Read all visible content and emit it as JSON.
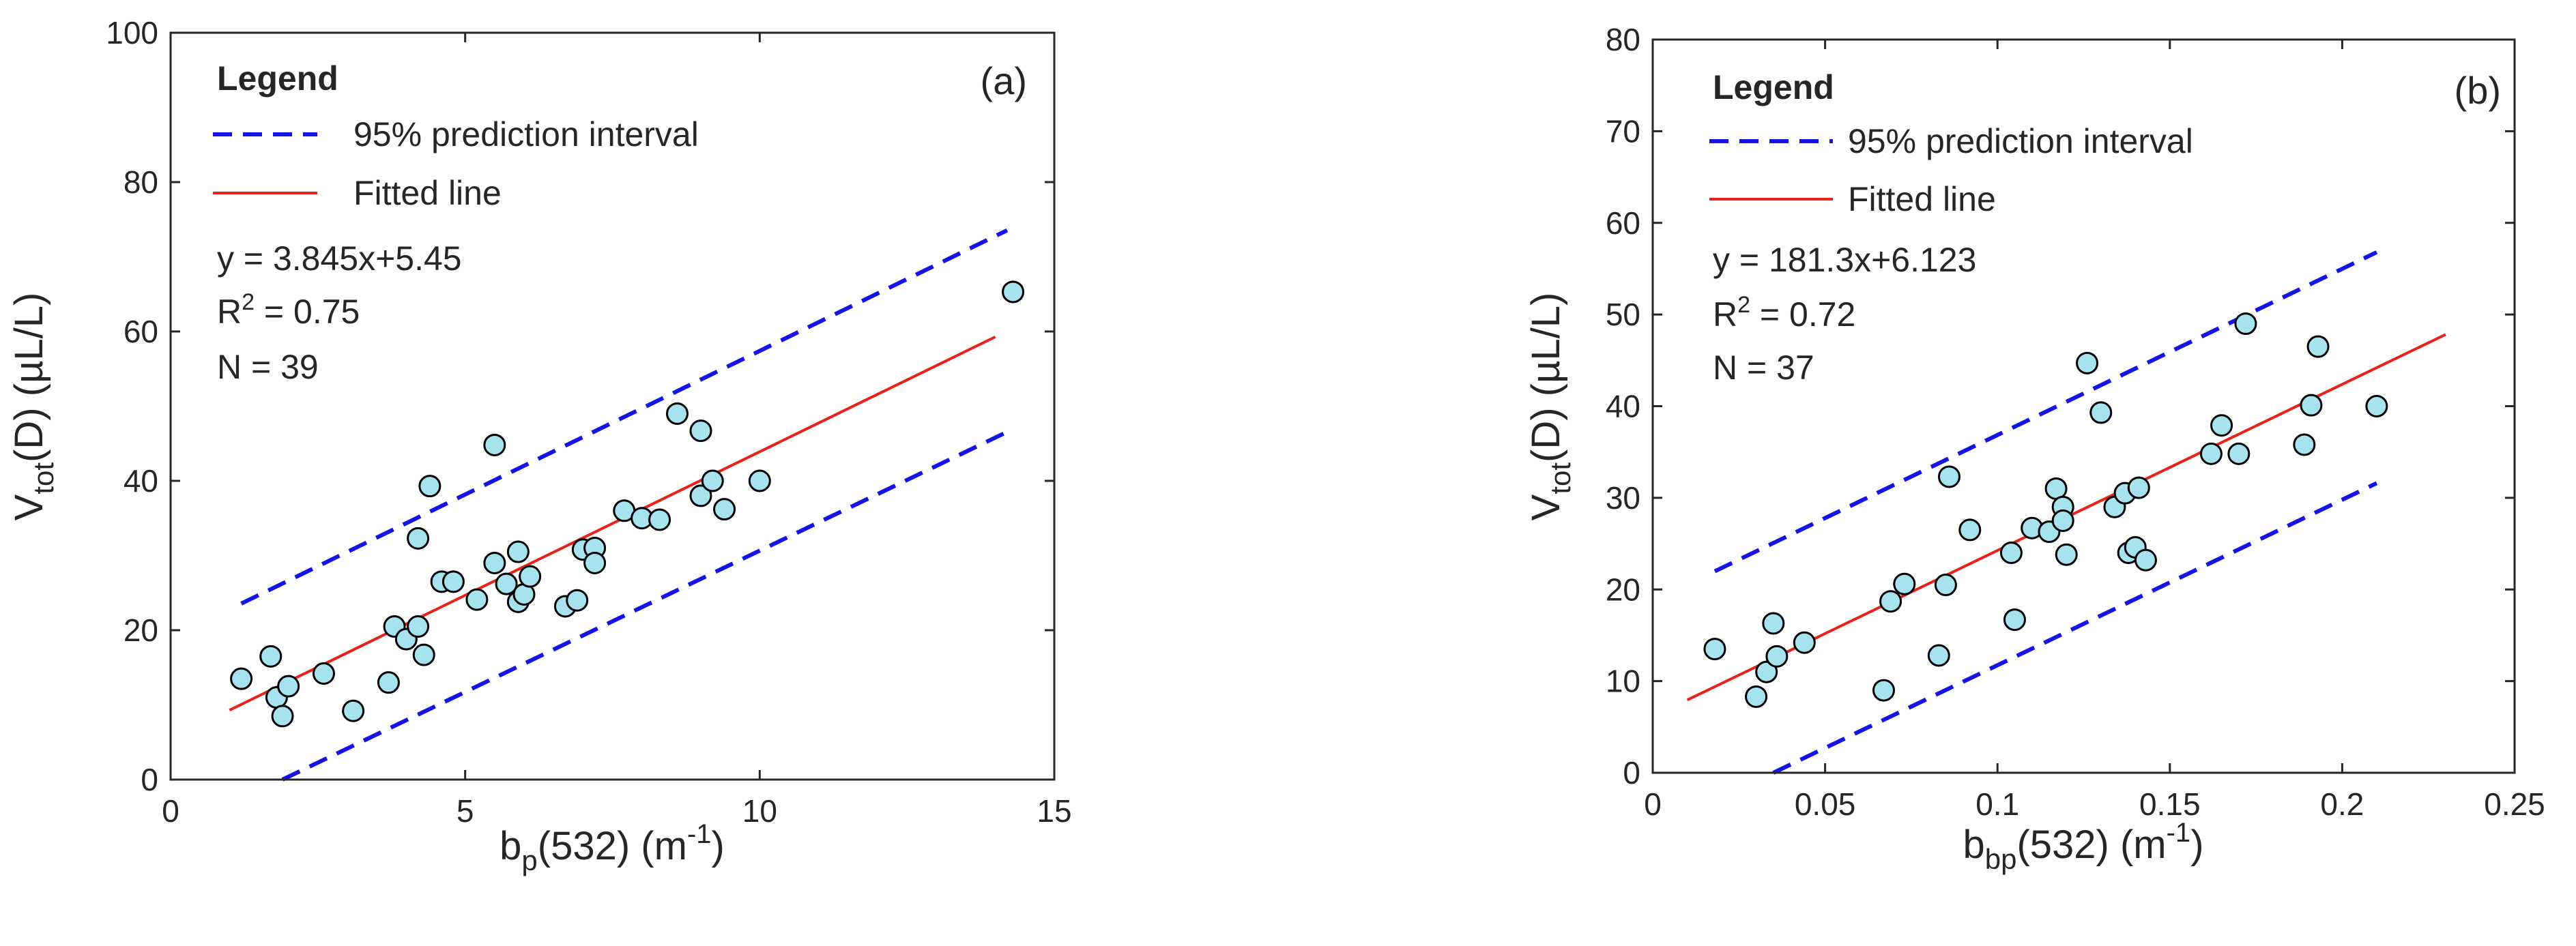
{
  "chart_data": [
    {
      "type": "scatter",
      "panel_label": "(a)",
      "xlim": [
        0,
        15
      ],
      "ylim": [
        0,
        100
      ],
      "xticks": [
        0,
        5,
        10,
        15
      ],
      "yticks": [
        0,
        20,
        40,
        60,
        80,
        100
      ],
      "xlabel": {
        "base": "b",
        "sub": "p",
        "tail": "(532) (m",
        "sup": "-1",
        "end": ")"
      },
      "ylabel": {
        "base": "V",
        "sub": "tot",
        "tail": "(D) (µL/L)"
      },
      "legend": {
        "title": "Legend",
        "interval_label": "95% prediction interval",
        "fit_label": "Fitted line",
        "equation": "y = 3.845x+5.45",
        "r2_prefix": "R",
        "r2_sup": "2",
        "r2_value": " = 0.75",
        "n_text": "N = 39"
      },
      "colors": {
        "interval": "#1414e6",
        "fit": "#e8211b",
        "marker_fill": "#a6e3ee",
        "marker_edge": "#000000"
      },
      "fit": {
        "slope": 3.845,
        "intercept": 5.45,
        "x_range": [
          1.0,
          14.0
        ]
      },
      "interval": {
        "half_width": 13.5,
        "upper_x_range": [
          1.2,
          14.2
        ],
        "lower_x_range": [
          1.9,
          14.2
        ]
      },
      "points": [
        [
          1.2,
          13.5
        ],
        [
          1.7,
          16.5
        ],
        [
          1.8,
          11
        ],
        [
          1.9,
          8.5
        ],
        [
          2.0,
          12.5
        ],
        [
          2.6,
          14.2
        ],
        [
          3.1,
          9.2
        ],
        [
          3.7,
          13
        ],
        [
          3.8,
          20.5
        ],
        [
          4.0,
          18.8
        ],
        [
          4.2,
          20.5
        ],
        [
          4.2,
          32.3
        ],
        [
          4.4,
          39.3
        ],
        [
          4.3,
          16.7
        ],
        [
          4.6,
          26.5
        ],
        [
          4.8,
          26.5
        ],
        [
          5.2,
          24.1
        ],
        [
          5.5,
          29
        ],
        [
          5.5,
          44.8
        ],
        [
          5.7,
          26.2
        ],
        [
          5.9,
          30.5
        ],
        [
          5.9,
          23.8
        ],
        [
          6.0,
          24.8
        ],
        [
          6.1,
          27.2
        ],
        [
          6.7,
          23.2
        ],
        [
          6.9,
          24
        ],
        [
          7.0,
          30.8
        ],
        [
          7.2,
          31
        ],
        [
          7.2,
          29
        ],
        [
          7.7,
          36
        ],
        [
          8.0,
          35
        ],
        [
          8.3,
          34.8
        ],
        [
          8.6,
          49
        ],
        [
          9.0,
          38
        ],
        [
          9.0,
          46.7
        ],
        [
          9.2,
          40
        ],
        [
          9.4,
          36.2
        ],
        [
          10.0,
          40
        ],
        [
          14.3,
          65.3
        ]
      ]
    },
    {
      "type": "scatter",
      "panel_label": "(b)",
      "xlim": [
        0,
        0.25
      ],
      "ylim": [
        0,
        80
      ],
      "xticks": [
        0,
        0.05,
        0.1,
        0.15,
        0.2,
        0.25
      ],
      "yticks": [
        0,
        10,
        20,
        30,
        40,
        50,
        60,
        70,
        80
      ],
      "xlabel": {
        "base": "b",
        "sub": "bp",
        "tail": "(532) (m",
        "sup": "-1",
        "end": ")"
      },
      "ylabel": {
        "base": "V",
        "sub": "tot",
        "tail": "(D) (µL/L)"
      },
      "legend": {
        "title": "Legend",
        "interval_label": "95% prediction interval",
        "fit_label": "Fitted line",
        "equation": "y = 181.3x+6.123",
        "r2_prefix": "R",
        "r2_sup": "2",
        "r2_value": " = 0.72",
        "n_text": "N = 37"
      },
      "colors": {
        "interval": "#1414e6",
        "fit": "#e8211b",
        "marker_fill": "#a6e3ee",
        "marker_edge": "#000000"
      },
      "fit": {
        "slope": 181.3,
        "intercept": 6.123,
        "x_range": [
          0.01,
          0.23
        ]
      },
      "interval": {
        "half_width": 12.6,
        "upper_x_range": [
          0.018,
          0.21
        ],
        "lower_x_range": [
          0.035,
          0.21
        ]
      },
      "points": [
        [
          0.018,
          13.5
        ],
        [
          0.03,
          8.3
        ],
        [
          0.033,
          11
        ],
        [
          0.035,
          16.3
        ],
        [
          0.036,
          12.7
        ],
        [
          0.044,
          14.2
        ],
        [
          0.067,
          9
        ],
        [
          0.069,
          18.7
        ],
        [
          0.073,
          20.6
        ],
        [
          0.083,
          12.8
        ],
        [
          0.085,
          20.5
        ],
        [
          0.086,
          32.3
        ],
        [
          0.092,
          26.5
        ],
        [
          0.104,
          24
        ],
        [
          0.105,
          16.7
        ],
        [
          0.11,
          26.7
        ],
        [
          0.115,
          26.3
        ],
        [
          0.117,
          31
        ],
        [
          0.119,
          29
        ],
        [
          0.119,
          27.5
        ],
        [
          0.12,
          23.8
        ],
        [
          0.126,
          44.7
        ],
        [
          0.13,
          39.3
        ],
        [
          0.134,
          29
        ],
        [
          0.137,
          30.5
        ],
        [
          0.138,
          24
        ],
        [
          0.14,
          24.6
        ],
        [
          0.141,
          31.1
        ],
        [
          0.143,
          23.2
        ],
        [
          0.162,
          34.8
        ],
        [
          0.165,
          37.9
        ],
        [
          0.17,
          34.8
        ],
        [
          0.172,
          49
        ],
        [
          0.189,
          35.8
        ],
        [
          0.191,
          40.1
        ],
        [
          0.193,
          46.5
        ],
        [
          0.21,
          40
        ]
      ]
    }
  ]
}
